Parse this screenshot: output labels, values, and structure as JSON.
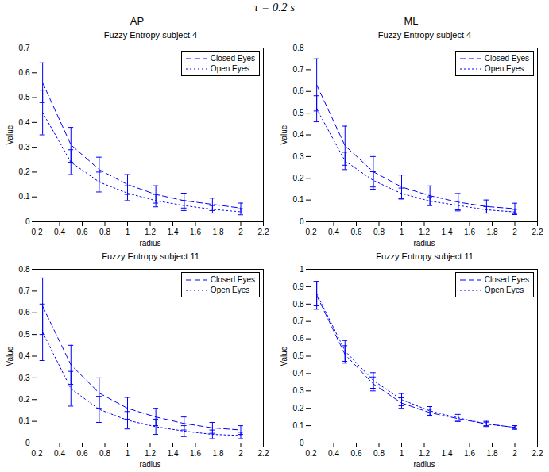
{
  "heading": "τ = 0.2 s",
  "column_titles": [
    "AP",
    "ML"
  ],
  "chart_data": [
    {
      "type": "line",
      "title": "Fuzzy Entropy subject 4",
      "x_label": "radius",
      "y_label": "Value",
      "x": [
        0.25,
        0.5,
        0.75,
        1,
        1.25,
        1.5,
        1.75,
        2
      ],
      "xlim": [
        0.2,
        2.2
      ],
      "xticks": [
        0.2,
        0.4,
        0.6,
        0.8,
        1,
        1.2,
        1.4,
        1.6,
        1.8,
        2,
        2.2
      ],
      "ylim": [
        0,
        0.7
      ],
      "yticks": [
        0,
        0.1,
        0.2,
        0.3,
        0.4,
        0.5,
        0.6,
        0.7
      ],
      "grid": false,
      "legend": "top-right",
      "series": [
        {
          "name": "Closed Eyes",
          "color": "#0000ff",
          "line_style": "dashed",
          "values": [
            0.56,
            0.31,
            0.21,
            0.15,
            0.11,
            0.085,
            0.07,
            0.055
          ],
          "errors": [
            0.08,
            0.07,
            0.05,
            0.04,
            0.035,
            0.03,
            0.025,
            0.02
          ]
        },
        {
          "name": "Open Eyes",
          "color": "#0000ff",
          "line_style": "dotted",
          "values": [
            0.44,
            0.24,
            0.16,
            0.115,
            0.085,
            0.065,
            0.05,
            0.04
          ],
          "errors": [
            0.09,
            0.05,
            0.04,
            0.03,
            0.025,
            0.02,
            0.015,
            0.012
          ]
        }
      ]
    },
    {
      "type": "line",
      "title": "Fuzzy Entropy subject 4",
      "x_label": "radius",
      "y_label": "Value",
      "x": [
        0.25,
        0.5,
        0.75,
        1,
        1.25,
        1.5,
        1.75,
        2
      ],
      "xlim": [
        0.2,
        2.2
      ],
      "xticks": [
        0.2,
        0.4,
        0.6,
        0.8,
        1,
        1.2,
        1.4,
        1.6,
        1.8,
        2,
        2.2
      ],
      "ylim": [
        0,
        0.8
      ],
      "yticks": [
        0,
        0.1,
        0.2,
        0.3,
        0.4,
        0.5,
        0.6,
        0.7,
        0.8
      ],
      "grid": false,
      "legend": "top-right",
      "series": [
        {
          "name": "Closed Eyes",
          "color": "#0000ff",
          "line_style": "dashed",
          "values": [
            0.63,
            0.35,
            0.23,
            0.16,
            0.12,
            0.09,
            0.07,
            0.06
          ],
          "errors": [
            0.12,
            0.09,
            0.07,
            0.055,
            0.045,
            0.04,
            0.03,
            0.025
          ]
        },
        {
          "name": "Open Eyes",
          "color": "#0000ff",
          "line_style": "dotted",
          "values": [
            0.52,
            0.28,
            0.19,
            0.13,
            0.095,
            0.075,
            0.055,
            0.045
          ],
          "errors": [
            0.06,
            0.04,
            0.04,
            0.025,
            0.02,
            0.02,
            0.015,
            0.012
          ]
        }
      ]
    },
    {
      "type": "line",
      "title": "Fuzzy Entropy subject 11",
      "x_label": "radius",
      "y_label": "Value",
      "x": [
        0.25,
        0.5,
        0.75,
        1,
        1.25,
        1.5,
        1.75,
        2
      ],
      "xlim": [
        0.2,
        2.2
      ],
      "xticks": [
        0.2,
        0.4,
        0.6,
        0.8,
        1,
        1.2,
        1.4,
        1.6,
        1.8,
        2,
        2.2
      ],
      "ylim": [
        0,
        0.8
      ],
      "yticks": [
        0,
        0.1,
        0.2,
        0.3,
        0.4,
        0.5,
        0.6,
        0.7,
        0.8
      ],
      "grid": false,
      "legend": "top-right",
      "series": [
        {
          "name": "Closed Eyes",
          "color": "#0000ff",
          "line_style": "dashed",
          "values": [
            0.63,
            0.36,
            0.23,
            0.16,
            0.12,
            0.09,
            0.07,
            0.06
          ],
          "errors": [
            0.13,
            0.09,
            0.07,
            0.05,
            0.04,
            0.03,
            0.025,
            0.02
          ]
        },
        {
          "name": "Open Eyes",
          "color": "#0000ff",
          "line_style": "dotted",
          "values": [
            0.51,
            0.25,
            0.155,
            0.105,
            0.075,
            0.055,
            0.04,
            0.035
          ],
          "errors": [
            0.13,
            0.08,
            0.06,
            0.04,
            0.035,
            0.025,
            0.02,
            0.015
          ]
        }
      ]
    },
    {
      "type": "line",
      "title": "Fuzzy Entropy subject 11",
      "x_label": "radius",
      "y_label": "Value",
      "x": [
        0.25,
        0.5,
        0.75,
        1,
        1.25,
        1.5,
        1.75,
        2
      ],
      "xlim": [
        0.2,
        2.2
      ],
      "xticks": [
        0.2,
        0.4,
        0.6,
        0.8,
        1,
        1.2,
        1.4,
        1.6,
        1.8,
        2,
        2.2
      ],
      "ylim": [
        0,
        1
      ],
      "yticks": [
        0,
        0.1,
        0.2,
        0.3,
        0.4,
        0.5,
        0.6,
        0.7,
        0.8,
        0.9,
        1
      ],
      "grid": false,
      "legend": "top-right",
      "series": [
        {
          "name": "Closed Eyes",
          "color": "#0000ff",
          "line_style": "dashed",
          "values": [
            0.85,
            0.51,
            0.34,
            0.23,
            0.175,
            0.14,
            0.11,
            0.09
          ],
          "errors": [
            0.08,
            0.05,
            0.04,
            0.03,
            0.02,
            0.015,
            0.01,
            0.01
          ]
        },
        {
          "name": "Open Eyes",
          "color": "#0000ff",
          "line_style": "dotted",
          "values": [
            0.86,
            0.53,
            0.36,
            0.25,
            0.185,
            0.145,
            0.11,
            0.09
          ],
          "errors": [
            0.07,
            0.06,
            0.045,
            0.035,
            0.025,
            0.02,
            0.015,
            0.01
          ]
        }
      ]
    }
  ]
}
